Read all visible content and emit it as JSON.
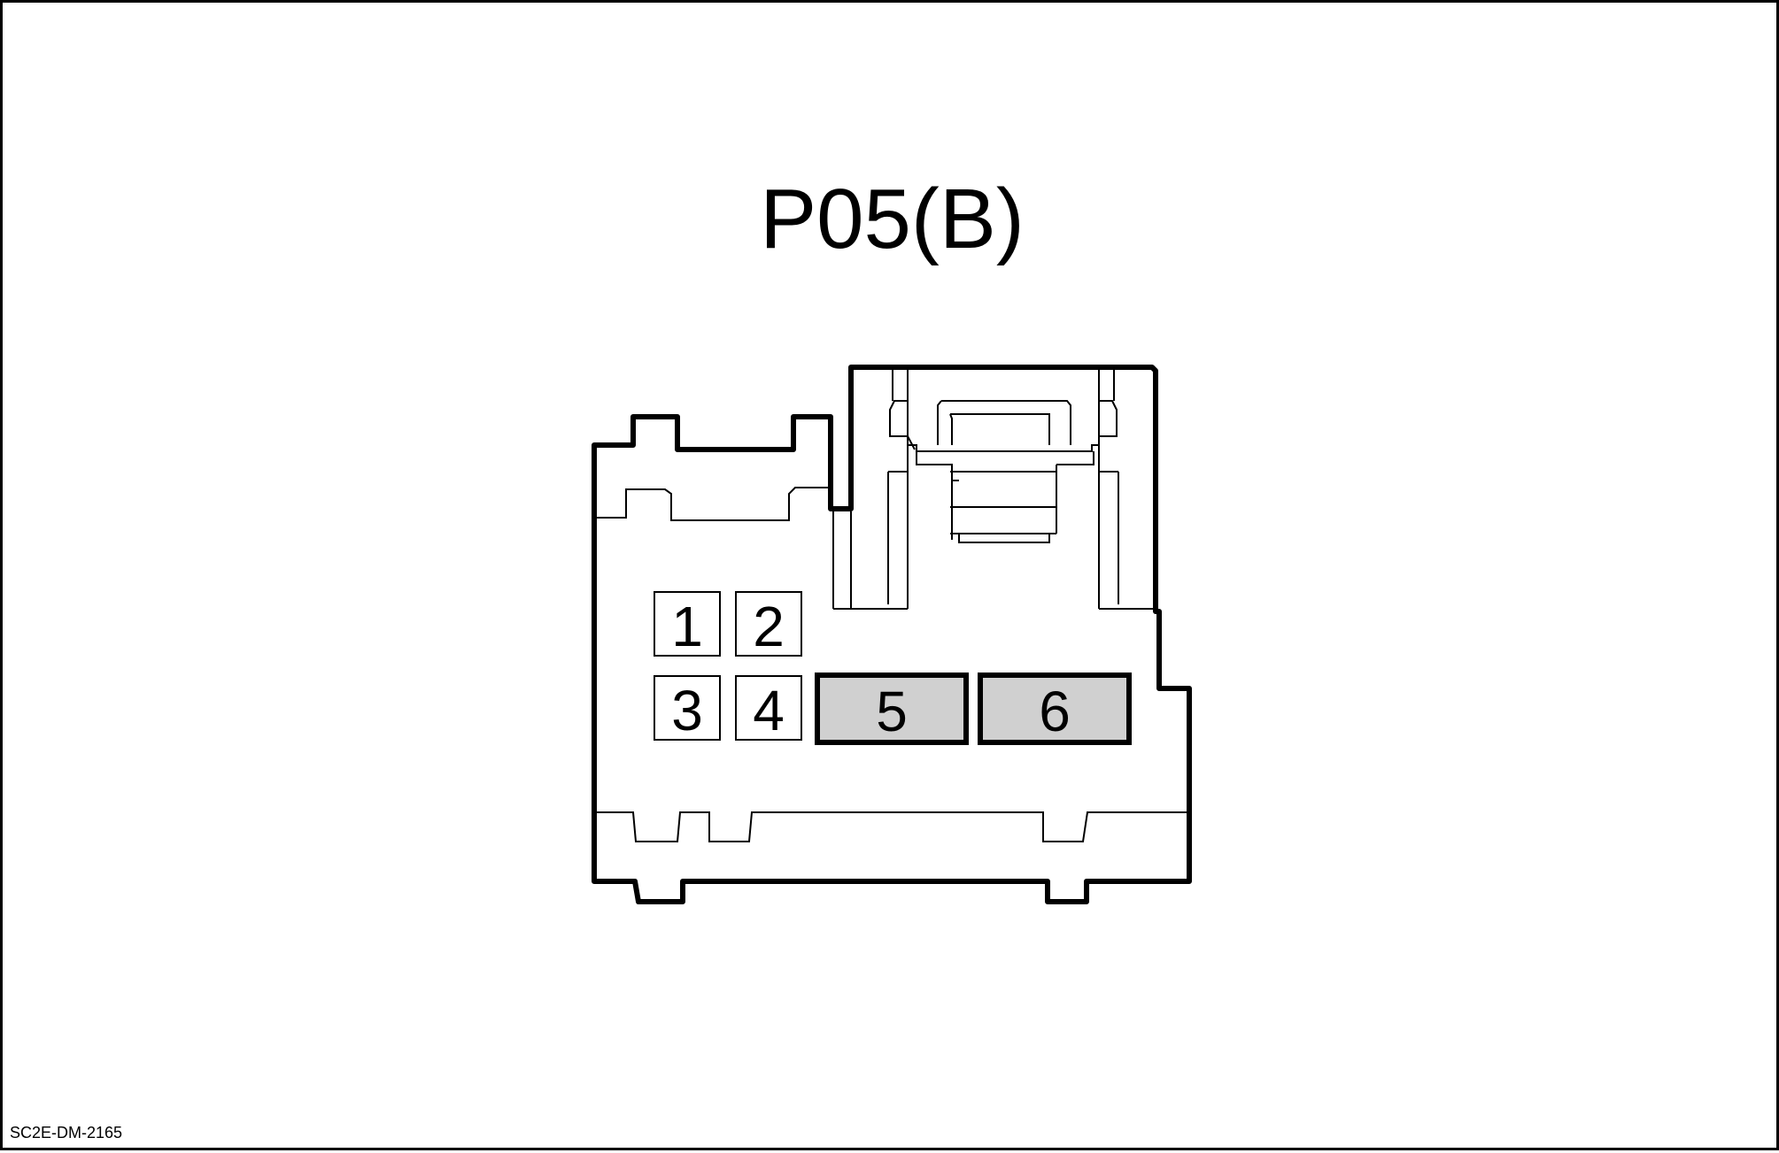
{
  "connector": {
    "title": "P05(B)",
    "pins": [
      {
        "number": "1",
        "type": "small",
        "fill": "#ffffff"
      },
      {
        "number": "2",
        "type": "small",
        "fill": "#ffffff"
      },
      {
        "number": "3",
        "type": "small",
        "fill": "#ffffff"
      },
      {
        "number": "4",
        "type": "small",
        "fill": "#ffffff"
      },
      {
        "number": "5",
        "type": "large",
        "fill": "#d0d0d0"
      },
      {
        "number": "6",
        "type": "large",
        "fill": "#d0d0d0"
      }
    ]
  },
  "footer": {
    "code": "SC2E-DM-2165"
  }
}
